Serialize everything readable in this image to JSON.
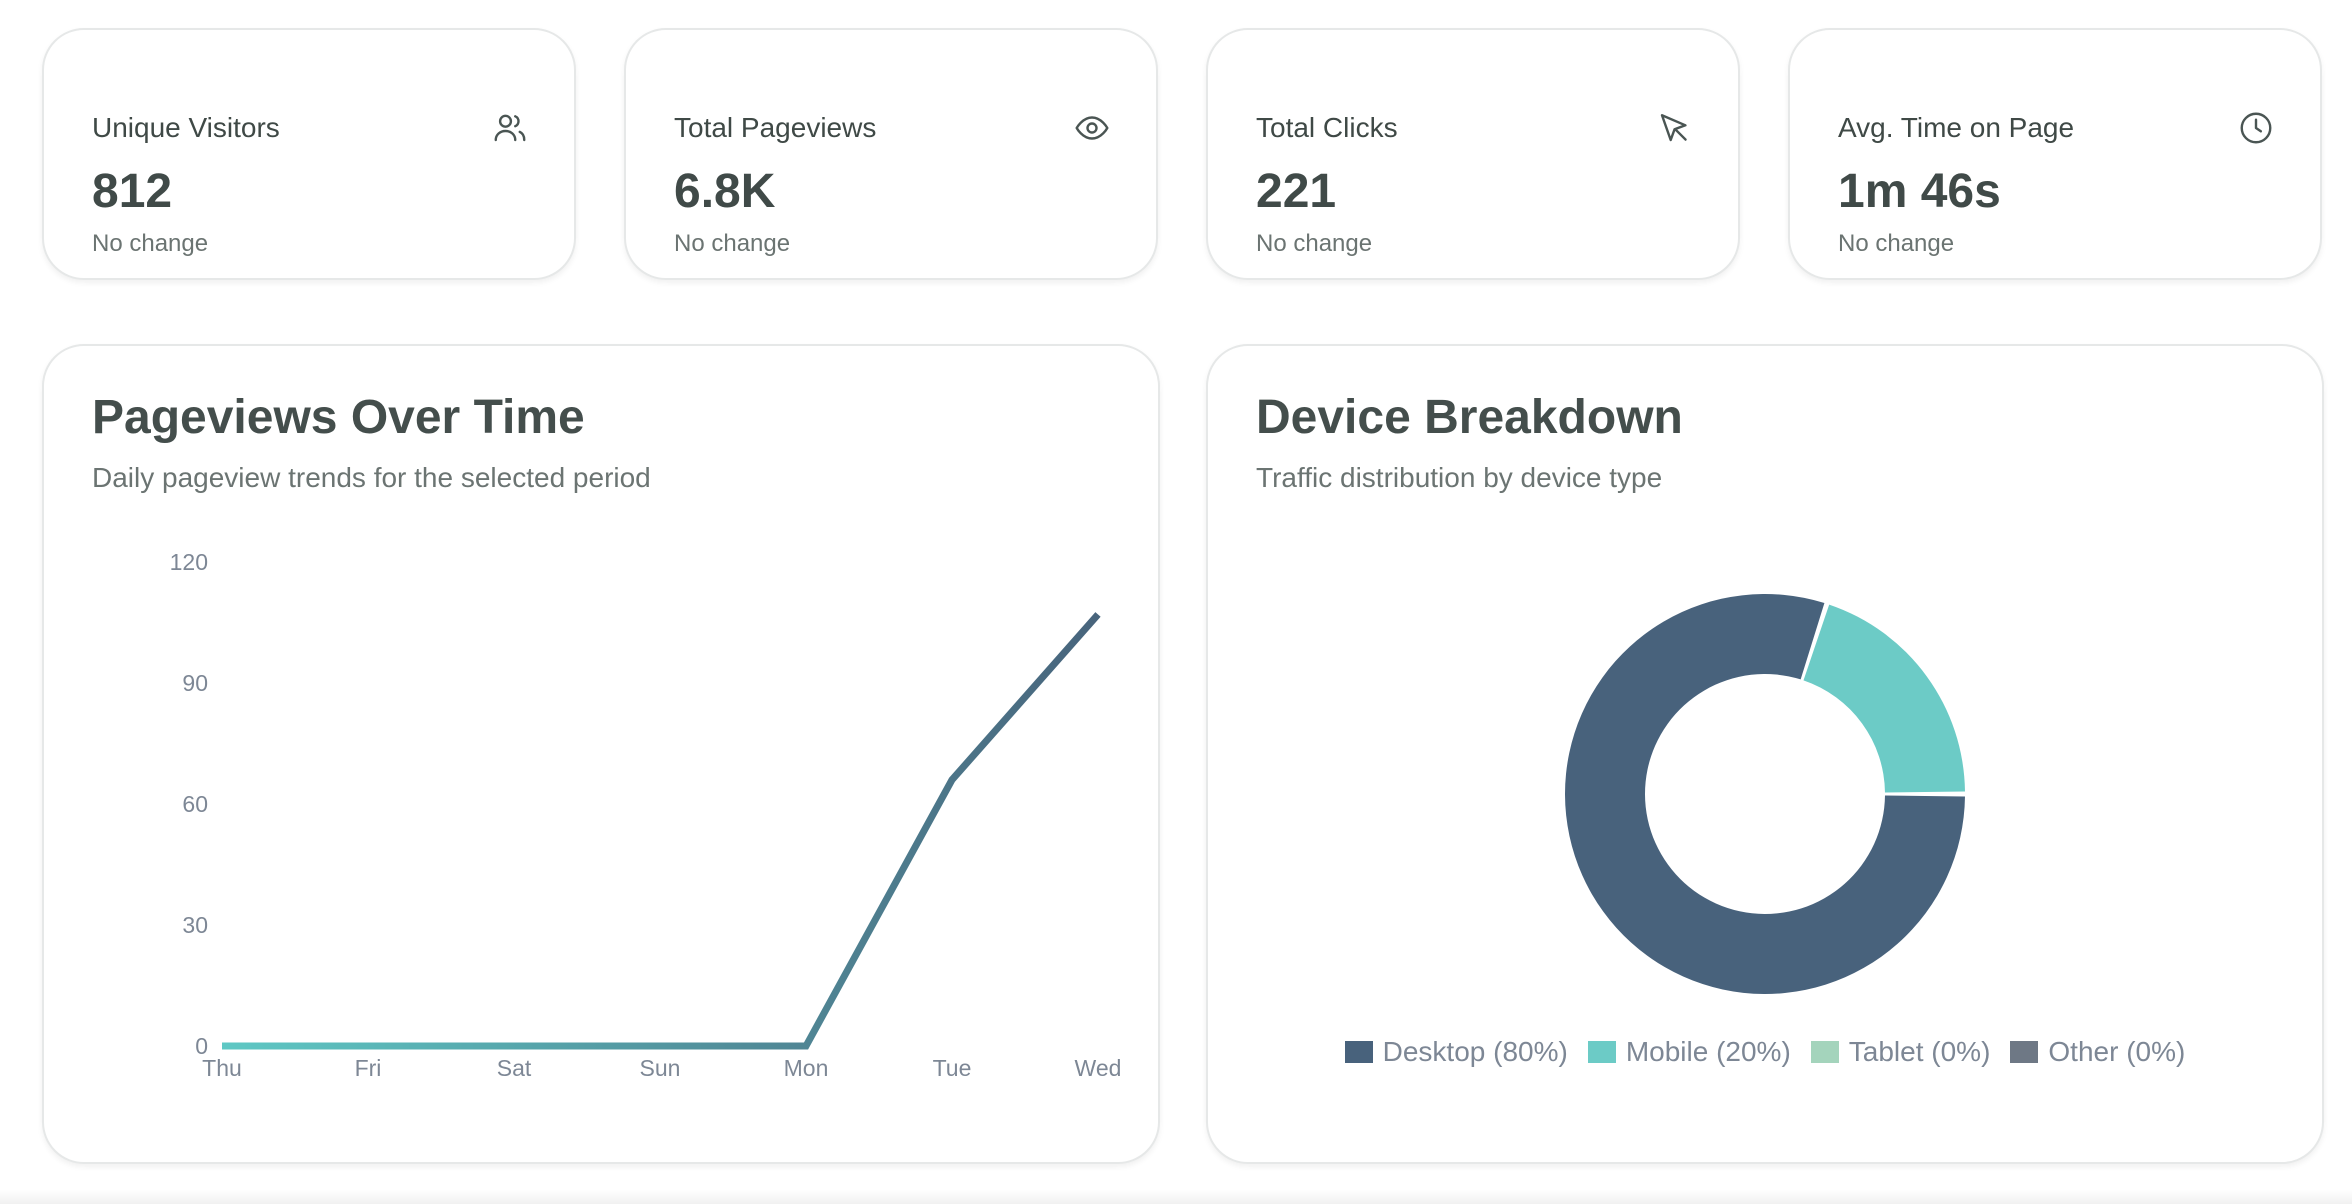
{
  "stats": [
    {
      "label": "Unique Visitors",
      "value": "812",
      "sub": "No change",
      "icon": "users-icon"
    },
    {
      "label": "Total Pageviews",
      "value": "6.8K",
      "sub": "No change",
      "icon": "eye-icon"
    },
    {
      "label": "Total Clicks",
      "value": "221",
      "sub": "No change",
      "icon": "cursor-icon"
    },
    {
      "label": "Avg. Time on Page",
      "value": "1m 46s",
      "sub": "No change",
      "icon": "clock-icon"
    }
  ],
  "pageviews_panel": {
    "title": "Pageviews Over Time",
    "subtitle": "Daily pageview trends for the selected period"
  },
  "device_panel": {
    "title": "Device Breakdown",
    "subtitle": "Traffic distribution by device type"
  },
  "colors": {
    "line_start": "#5ec8c4",
    "line_end": "#48647c",
    "desktop": "#48627c",
    "mobile": "#6ccbc6",
    "tablet": "#a4d4bc",
    "other": "#6e7885"
  },
  "chart_data": [
    {
      "type": "line",
      "title": "Pageviews Over Time",
      "categories": [
        "Thu",
        "Fri",
        "Sat",
        "Sun",
        "Mon",
        "Tue",
        "Wed"
      ],
      "series": [
        {
          "name": "Pageviews",
          "values": [
            0,
            0,
            0,
            0,
            0,
            66,
            107
          ]
        }
      ],
      "yticks": [
        0,
        30,
        60,
        90,
        120
      ],
      "ylim": [
        0,
        120
      ],
      "xlabel": "",
      "ylabel": "",
      "grid": false
    },
    {
      "type": "pie",
      "title": "Device Breakdown",
      "style": "donut",
      "slices": [
        {
          "name": "Desktop",
          "value": 80,
          "label": "Desktop (80%)"
        },
        {
          "name": "Mobile",
          "value": 20,
          "label": "Mobile (20%)"
        },
        {
          "name": "Tablet",
          "value": 0,
          "label": "Tablet (0%)"
        },
        {
          "name": "Other",
          "value": 0,
          "label": "Other (0%)"
        }
      ],
      "legend": "bottom"
    }
  ]
}
